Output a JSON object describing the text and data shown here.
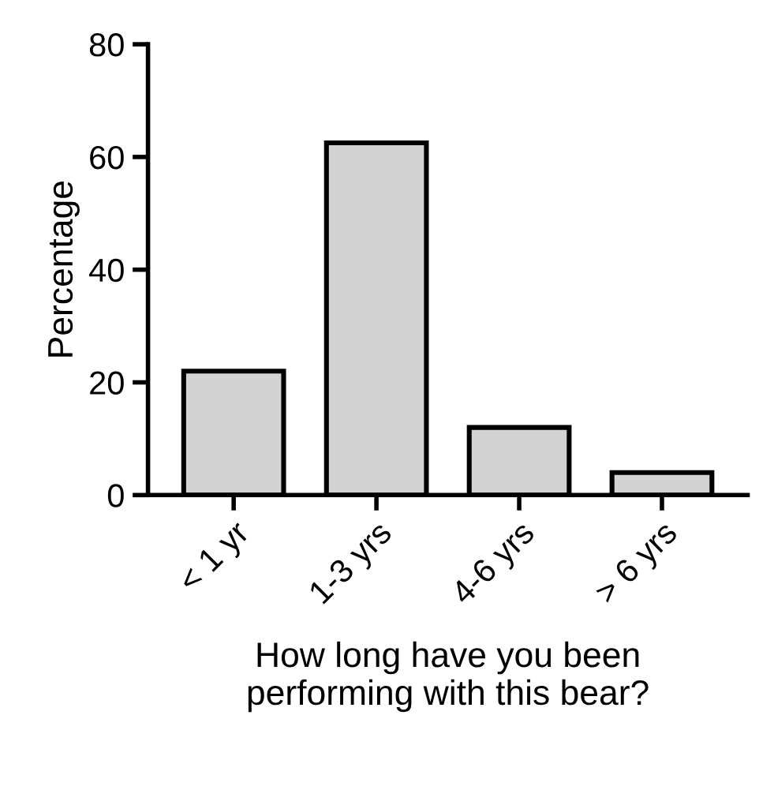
{
  "chart_data": {
    "type": "bar",
    "categories": [
      "< 1 yr",
      "1-3 yrs",
      "4-6 yrs",
      "> 6 yrs"
    ],
    "values": [
      22,
      62.5,
      12,
      4
    ],
    "color": "#d3d3d3",
    "ylabel": "Percentage",
    "xlabel": "How long have you been\nperforming with this bear?",
    "ylim": [
      0,
      80
    ],
    "yticks": [
      0,
      20,
      40,
      60,
      80
    ],
    "grid": false,
    "legend": false
  }
}
